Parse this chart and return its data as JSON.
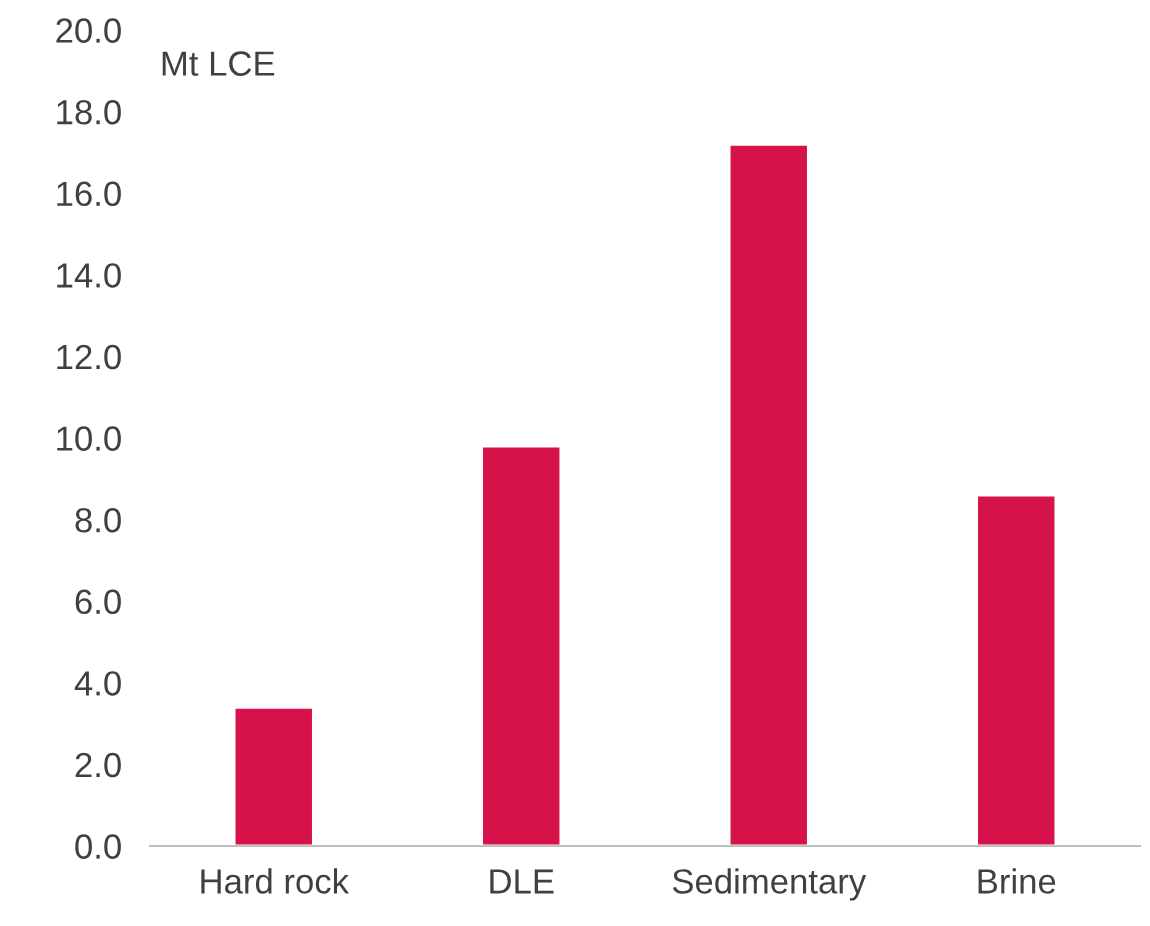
{
  "chart_data": {
    "type": "bar",
    "ylabel": "Mt LCE",
    "categories": [
      "Hard rock",
      "DLE",
      "Sedimentary",
      "Brine"
    ],
    "values": [
      3.4,
      9.8,
      17.2,
      8.6
    ],
    "color": "#d51249",
    "ylim": [
      0,
      20
    ],
    "yticks": [
      {
        "value": 0,
        "label": "0.0"
      },
      {
        "value": 2,
        "label": "2.0"
      },
      {
        "value": 4,
        "label": "4.0"
      },
      {
        "value": 6,
        "label": "6.0"
      },
      {
        "value": 8,
        "label": "8.0"
      },
      {
        "value": 10,
        "label": "10.0"
      },
      {
        "value": 12,
        "label": "12.0"
      },
      {
        "value": 14,
        "label": "14.0"
      },
      {
        "value": 16,
        "label": "16.0"
      },
      {
        "value": 18,
        "label": "18.0"
      },
      {
        "value": 20,
        "label": "20.0"
      }
    ],
    "grid": false,
    "legend": false
  }
}
